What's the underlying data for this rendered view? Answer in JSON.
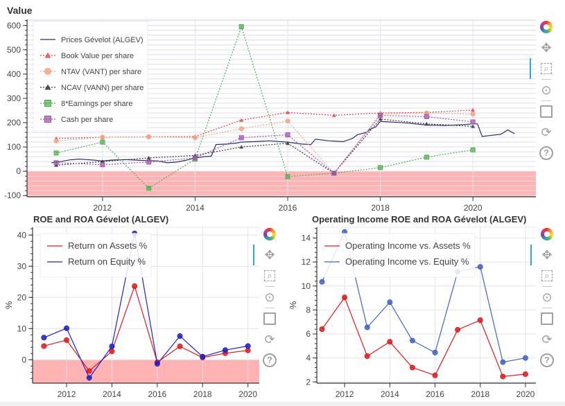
{
  "toolbar_icons": [
    "bokeh-logo-icon",
    "pan-icon",
    "box-zoom-icon",
    "wheel-zoom-icon",
    "save-icon",
    "reset-icon",
    "help-icon"
  ],
  "chart_data": [
    {
      "type": "line",
      "title": "Value",
      "xlabel": "",
      "ylabel": "",
      "xlim": [
        2010.37,
        2021.36
      ],
      "ylim": [
        -105,
        625
      ],
      "x_ticks": [
        2012,
        2014,
        2016,
        2018,
        2020
      ],
      "y_ticks": [
        -100,
        0,
        100,
        200,
        300,
        400,
        500,
        600
      ],
      "grid": true,
      "legend_placement": "top-left",
      "negative_band": {
        "from": 0,
        "to": -105,
        "color": "#ffb3b3"
      },
      "series": [
        {
          "name": "Prices Gévelot (ALGEV)",
          "color": "#2b2d6e",
          "style": "solid",
          "marker": "none",
          "x": [
            2010.9,
            2011.1,
            2011.3,
            2011.5,
            2011.8,
            2012.0,
            2012.2,
            2012.5,
            2012.8,
            2013.0,
            2013.2,
            2013.4,
            2013.6,
            2013.8,
            2014.0,
            2014.2,
            2014.35,
            2014.45,
            2014.7,
            2014.9,
            2015.0,
            2015.3,
            2015.6,
            2016.0,
            2016.3,
            2016.5,
            2016.6,
            2016.9,
            2017.2,
            2017.4,
            2017.5,
            2017.7,
            2017.8,
            2017.9,
            2018.0,
            2018.3,
            2018.6,
            2019.0,
            2019.4,
            2019.8,
            2020.0,
            2020.1,
            2020.2,
            2020.4,
            2020.6,
            2020.75,
            2020.9
          ],
          "y": [
            35,
            40,
            47,
            50,
            46,
            42,
            46,
            48,
            45,
            44,
            42,
            35,
            38,
            45,
            55,
            60,
            62,
            110,
            112,
            116,
            120,
            122,
            125,
            120,
            112,
            110,
            132,
            125,
            122,
            135,
            150,
            160,
            175,
            182,
            205,
            202,
            198,
            190,
            188,
            192,
            195,
            195,
            143,
            148,
            152,
            170,
            155
          ]
        },
        {
          "name": "Book Value per share",
          "color": "#e8464f",
          "style": "dotted",
          "marker": "triangle",
          "x": [
            2011,
            2012,
            2013,
            2014,
            2015,
            2016,
            2017,
            2018,
            2019,
            2020
          ],
          "y": [
            135,
            140,
            142,
            143,
            210,
            242,
            230,
            240,
            242,
            252
          ]
        },
        {
          "name": "NTAV (VANT) per share",
          "color": "#f4a582",
          "style": "dotted",
          "marker": "circle",
          "x": [
            2011,
            2012,
            2013,
            2014,
            2015,
            2016,
            2017,
            2018,
            2019,
            2020
          ],
          "y": [
            125,
            140,
            142,
            138,
            175,
            207,
            -8,
            235,
            240,
            235
          ]
        },
        {
          "name": "NCAV (VANN) per share",
          "color": "#333333",
          "style": "dotted",
          "marker": "triangle",
          "x": [
            2011,
            2012,
            2013,
            2014,
            2015,
            2016,
            2017,
            2018,
            2019,
            2020
          ],
          "y": [
            25,
            40,
            55,
            65,
            100,
            115,
            -8,
            215,
            195,
            185
          ]
        },
        {
          "name": "8*Earnings per share",
          "color": "#4daf4a",
          "style": "dotted",
          "marker": "square",
          "x": [
            2011,
            2012,
            2013,
            2014,
            2015,
            2016,
            2017,
            2018,
            2019,
            2020
          ],
          "y": [
            75,
            120,
            -70,
            50,
            595,
            -22,
            -8,
            15,
            58,
            88
          ]
        },
        {
          "name": "Cash per share",
          "color": "#a24fb0",
          "style": "dotted",
          "marker": "square",
          "x": [
            2011,
            2012,
            2013,
            2014,
            2015,
            2016,
            2017,
            2018,
            2019,
            2020
          ],
          "y": [
            35,
            27,
            38,
            55,
            138,
            150,
            -8,
            230,
            225,
            203
          ]
        }
      ]
    },
    {
      "type": "line",
      "title": "ROE and ROA Gévelot (ALGEV)",
      "xlabel": "",
      "ylabel": "%",
      "xlim": [
        2010.5,
        2020.5
      ],
      "ylim": [
        -7.5,
        42.5
      ],
      "x_ticks": [
        2012,
        2014,
        2016,
        2018,
        2020
      ],
      "y_ticks": [
        0,
        10,
        20,
        30,
        40
      ],
      "grid": true,
      "legend_placement": "top-left",
      "negative_band": {
        "from": 0,
        "to": -7.5,
        "color": "#ffb3b3"
      },
      "series": [
        {
          "name": "Return on Assets %",
          "color": "#e31a1c",
          "style": "solid",
          "marker": "circle",
          "x": [
            2011,
            2012,
            2013,
            2014,
            2015,
            2016,
            2017,
            2018,
            2019,
            2020
          ],
          "y": [
            4.4,
            6.3,
            -3.6,
            2.7,
            23.6,
            -0.8,
            4.3,
            0.7,
            2.1,
            3.0
          ]
        },
        {
          "name": "Return on Equity %",
          "color": "#2020c8",
          "style": "solid",
          "marker": "circle",
          "x": [
            2011,
            2012,
            2013,
            2014,
            2015,
            2016,
            2017,
            2018,
            2019,
            2020
          ],
          "y": [
            7.1,
            10.1,
            -5.8,
            4.3,
            40.5,
            -1.3,
            7.6,
            1.0,
            3.1,
            4.4
          ]
        }
      ]
    },
    {
      "type": "line",
      "title": "Operating Income ROE and ROA Gévelot (ALGEV)",
      "xlabel": "",
      "ylabel": "%",
      "xlim": [
        2010.77,
        2020.46
      ],
      "ylim": [
        1.9,
        14.9
      ],
      "x_ticks": [
        2012,
        2014,
        2016,
        2018,
        2020
      ],
      "y_ticks": [
        2,
        4,
        6,
        8,
        10,
        12,
        14
      ],
      "grid": true,
      "legend_placement": "top-left",
      "series": [
        {
          "name": "Operating Income vs. Assets %",
          "color": "#e31a1c",
          "style": "solid",
          "marker": "circle",
          "x": [
            2011,
            2012,
            2013,
            2014,
            2015,
            2016,
            2017,
            2018,
            2019,
            2020
          ],
          "y": [
            6.4,
            9.05,
            4.15,
            5.35,
            3.2,
            2.55,
            6.35,
            7.15,
            2.45,
            2.65
          ]
        },
        {
          "name": "Operating Income vs. Equity %",
          "color": "#3f63c8",
          "style": "solid",
          "marker": "circle",
          "x": [
            2011,
            2012,
            2013,
            2014,
            2015,
            2016,
            2017,
            2018,
            2019,
            2020
          ],
          "y": [
            10.35,
            14.5,
            6.55,
            8.65,
            5.45,
            4.45,
            11.2,
            11.6,
            3.65,
            4.0
          ]
        }
      ]
    }
  ]
}
